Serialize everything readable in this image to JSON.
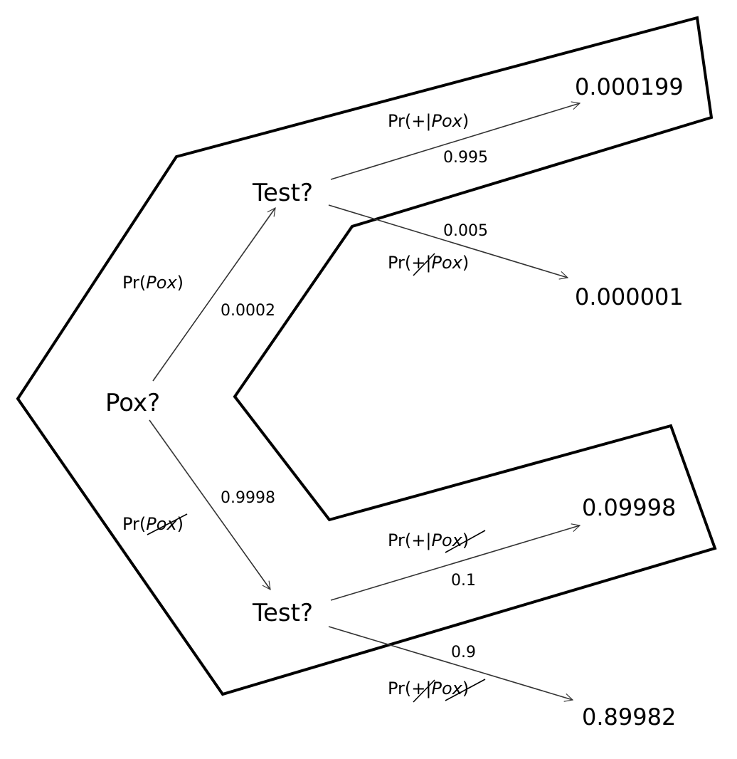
{
  "nodes": {
    "root": "Pox?",
    "test_top": "Test?",
    "test_bottom": "Test?"
  },
  "edges": {
    "pox": {
      "label_pre": "Pr(",
      "label_var": "Pox",
      "label_post": ")",
      "prob": "0.0002"
    },
    "no_pox": {
      "label_pre": "Pr(",
      "label_var": "Pox",
      "label_post": ")",
      "prob": "0.9998"
    },
    "pos_given_pox": {
      "label_pre": "Pr(+|",
      "label_var": "Pox",
      "label_post": ")",
      "prob": "0.995"
    },
    "neg_given_pox": {
      "label_pre": "Pr(",
      "label_sym": "+",
      "label_mid": "|",
      "label_var": "Pox",
      "label_post": ")",
      "prob": "0.005"
    },
    "pos_given_no_pox": {
      "label_pre": "Pr(+|",
      "label_var": "Pox",
      "label_post": ")",
      "prob": "0.1"
    },
    "neg_given_no_pox": {
      "label_pre": "Pr(",
      "label_sym": "+",
      "label_mid": "|",
      "label_var": "Pox",
      "label_post": ")",
      "prob": "0.9"
    }
  },
  "leaves": {
    "pox_pos": "0.000199",
    "pox_neg": "0.000001",
    "nopox_pos": "0.09998",
    "nopox_neg": "0.89982"
  }
}
